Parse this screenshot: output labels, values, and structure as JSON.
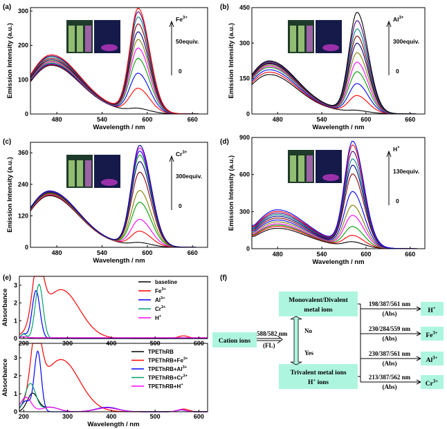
{
  "chart_data": [
    {
      "panel": "(a)",
      "type": "line",
      "xlabel": "Wavelength / nm",
      "ylabel": "Emission Intensity (a.u.)",
      "xlim": [
        445,
        680
      ],
      "ylim": [
        0,
        310
      ],
      "xticks": [
        480,
        540,
        600,
        660
      ],
      "yticks": [
        0,
        100,
        200,
        300
      ],
      "annotation": {
        "ion": "Fe",
        "charge": "3+",
        "amount": "50equiv.",
        "zero": "0"
      },
      "peak1_nm": 472,
      "peak2_nm": 588,
      "tail": 10,
      "series": [
        {
          "h1": 140,
          "h2": 10,
          "color": "#000000"
        },
        {
          "h1": 142,
          "h2": 68,
          "color": "#ff0000"
        },
        {
          "h1": 144,
          "h2": 112,
          "color": "#0000ff"
        },
        {
          "h1": 147,
          "h2": 155,
          "color": "#00a000"
        },
        {
          "h1": 150,
          "h2": 185,
          "color": "#ff00ff"
        },
        {
          "h1": 153,
          "h2": 210,
          "color": "#808000"
        },
        {
          "h1": 156,
          "h2": 232,
          "color": "#000080"
        },
        {
          "h1": 160,
          "h2": 255,
          "color": "#8b0000"
        },
        {
          "h1": 164,
          "h2": 275,
          "color": "#008080"
        },
        {
          "h1": 167,
          "h2": 290,
          "color": "#4b0082"
        },
        {
          "h1": 170,
          "h2": 300,
          "color": "#ff0000"
        }
      ]
    },
    {
      "panel": "(b)",
      "type": "line",
      "xlabel": "Wavelength / nm",
      "ylabel": "Emission Intensity (a.u.)",
      "xlim": [
        445,
        680
      ],
      "ylim": [
        0,
        450
      ],
      "xticks": [
        480,
        540,
        600,
        660
      ],
      "yticks": [
        0,
        150,
        300,
        450
      ],
      "annotation": {
        "ion": "Al",
        "charge": "3+",
        "amount": "300equiv.",
        "zero": "0"
      },
      "peak1_nm": 468,
      "peak2_nm": 588,
      "tail": 12,
      "series": [
        {
          "h1": 165,
          "h2": 8,
          "color": "#000000"
        },
        {
          "h1": 175,
          "h2": 70,
          "color": "#ff0000"
        },
        {
          "h1": 185,
          "h2": 120,
          "color": "#0000ff"
        },
        {
          "h1": 195,
          "h2": 170,
          "color": "#00a000"
        },
        {
          "h1": 200,
          "h2": 210,
          "color": "#ff00ff"
        },
        {
          "h1": 205,
          "h2": 250,
          "color": "#808000"
        },
        {
          "h1": 210,
          "h2": 290,
          "color": "#000080"
        },
        {
          "h1": 213,
          "h2": 320,
          "color": "#8b0000"
        },
        {
          "h1": 216,
          "h2": 350,
          "color": "#008080"
        },
        {
          "h1": 218,
          "h2": 385,
          "color": "#4b0082"
        },
        {
          "h1": 222,
          "h2": 420,
          "color": "#000000"
        }
      ]
    },
    {
      "panel": "(c)",
      "type": "line",
      "xlabel": "Wavelength / nm",
      "ylabel": "Emission Intensity (a.u.)",
      "xlim": [
        445,
        680
      ],
      "ylim": [
        0,
        400
      ],
      "xticks": [
        480,
        540,
        600,
        660
      ],
      "yticks": [
        0,
        120,
        240,
        360
      ],
      "annotation": {
        "ion": "Cr",
        "charge": "3+",
        "amount": "300equiv.",
        "zero": "0"
      },
      "peak1_nm": 470,
      "peak2_nm": 590,
      "tail": 10,
      "series": [
        {
          "h1": 195,
          "h2": 12,
          "color": "#000000"
        },
        {
          "h1": 198,
          "h2": 55,
          "color": "#ff0000"
        },
        {
          "h1": 200,
          "h2": 100,
          "color": "#ff00ff"
        },
        {
          "h1": 202,
          "h2": 165,
          "color": "#00a000"
        },
        {
          "h1": 204,
          "h2": 210,
          "color": "#808000"
        },
        {
          "h1": 206,
          "h2": 280,
          "color": "#8b0000"
        },
        {
          "h1": 208,
          "h2": 320,
          "color": "#000080"
        },
        {
          "h1": 210,
          "h2": 345,
          "color": "#00a000"
        },
        {
          "h1": 211,
          "h2": 360,
          "color": "#0000ff"
        },
        {
          "h1": 212,
          "h2": 372,
          "color": "#ff00ff"
        },
        {
          "h1": 213,
          "h2": 382,
          "color": "#000080"
        }
      ]
    },
    {
      "panel": "(d)",
      "type": "line",
      "xlabel": "Wavelength / nm",
      "ylabel": "Emission Intensity (a.u.)",
      "xlim": [
        445,
        680
      ],
      "ylim": [
        0,
        900
      ],
      "xticks": [
        480,
        540,
        600,
        660
      ],
      "yticks": [
        0,
        300,
        600,
        900
      ],
      "annotation": {
        "ion": "H",
        "charge": "+",
        "amount": "130equiv.",
        "zero": "0"
      },
      "peak1_nm": 478,
      "peak2_nm": 582,
      "tail": 20,
      "series": [
        {
          "h1": 160,
          "h2": 40,
          "color": "#000000"
        },
        {
          "h1": 175,
          "h2": 90,
          "color": "#ff0000"
        },
        {
          "h1": 185,
          "h2": 160,
          "color": "#00a000"
        },
        {
          "h1": 195,
          "h2": 250,
          "color": "#ff00ff"
        },
        {
          "h1": 210,
          "h2": 330,
          "color": "#808000"
        },
        {
          "h1": 225,
          "h2": 440,
          "color": "#0000ff"
        },
        {
          "h1": 240,
          "h2": 580,
          "color": "#8b0000"
        },
        {
          "h1": 255,
          "h2": 650,
          "color": "#000080"
        },
        {
          "h1": 268,
          "h2": 700,
          "color": "#008080"
        },
        {
          "h1": 280,
          "h2": 760,
          "color": "#4b0082"
        },
        {
          "h1": 292,
          "h2": 810,
          "color": "#ff0000"
        },
        {
          "h1": 305,
          "h2": 840,
          "color": "#0000ff"
        }
      ]
    },
    {
      "panel": "(e) top",
      "type": "line",
      "xlabel": "",
      "ylabel": "Absorbance",
      "xlim": [
        190,
        620
      ],
      "ylim": [
        0,
        3.5
      ],
      "xticks": [
        200,
        300,
        400,
        500,
        600
      ],
      "yticks": [
        0,
        1,
        2,
        3
      ],
      "series": [
        {
          "name": "baseline",
          "sup": "",
          "color": "#000000",
          "kind": "flat"
        },
        {
          "name": "Fe",
          "sup": "3+",
          "color": "#ff0000",
          "kind": "fe",
          "peak_nm": 232,
          "peak": 3.3,
          "shoulder_nm": 285,
          "shoulder": 2.75
        },
        {
          "name": "Al",
          "sup": "3+",
          "color": "#0000ff",
          "kind": "uv",
          "peak_nm": 228,
          "peak": 2.7
        },
        {
          "name": "Cr",
          "sup": "3+",
          "color": "#00a070",
          "kind": "uv",
          "peak_nm": 235,
          "peak": 3.05
        },
        {
          "name": "H",
          "sup": "+",
          "color": "#ff00ff",
          "kind": "flat"
        }
      ]
    },
    {
      "panel": "(e) bottom",
      "type": "line",
      "xlabel": "Wavelength / nm",
      "ylabel": "Absorbance",
      "xlim": [
        190,
        620
      ],
      "ylim": [
        0,
        3.8
      ],
      "xticks": [
        200,
        300,
        400,
        500,
        600
      ],
      "yticks": [
        0,
        1,
        2,
        3
      ],
      "series": [
        {
          "name": "TPEThRB",
          "sup": "",
          "color": "#000000",
          "kind": "small",
          "peak_nm": 220,
          "peak": 1.0
        },
        {
          "name": "TPEThRB+Fe",
          "sup": "3+",
          "color": "#ff0000",
          "kind": "fe",
          "peak_nm": 228,
          "peak": 3.65,
          "shoulder_nm": 285,
          "shoulder": 2.9
        },
        {
          "name": "TPEThRB+Al",
          "sup": "3+",
          "color": "#0000ff",
          "kind": "uv2",
          "peak_nm": 232,
          "peak": 3.35
        },
        {
          "name": "TPEThRB+Cr",
          "sup": "3+",
          "color": "#00a070",
          "kind": "small",
          "peak_nm": 215,
          "peak": 1.55
        },
        {
          "name": "TPEThRB+H",
          "sup": "+",
          "color": "#ff00ff",
          "kind": "small",
          "peak_nm": 205,
          "peak": 0.8
        }
      ]
    }
  ],
  "panel_labels": {
    "a": "(a)",
    "b": "(b)",
    "c": "(c)",
    "d": "(d)",
    "e": "(e)",
    "f": "(f)"
  },
  "flowchart": {
    "cation": "Cation ions",
    "fl_wavelength": "588/582 nm",
    "fl_mode": "(FL)",
    "mono": "Monovalent/Divalent",
    "mono2": "metal ions",
    "no": "No",
    "yes": "Yes",
    "tri": "Trivalent metal ions",
    "tri2": "H",
    "tri2_sup": "+",
    "tri2_rest": " ions",
    "abs_mode": "(Abs)",
    "results": [
      {
        "wl": "198/387/561 nm",
        "ion": "H",
        "sup": "+"
      },
      {
        "wl": "230/284/559 nm",
        "ion": "Fe",
        "sup": "3+"
      },
      {
        "wl": "230/387/561 nm",
        "ion": "Al",
        "sup": "3+"
      },
      {
        "wl": "213/387/562 nm",
        "ion": "Cr",
        "sup": "3+"
      }
    ]
  }
}
